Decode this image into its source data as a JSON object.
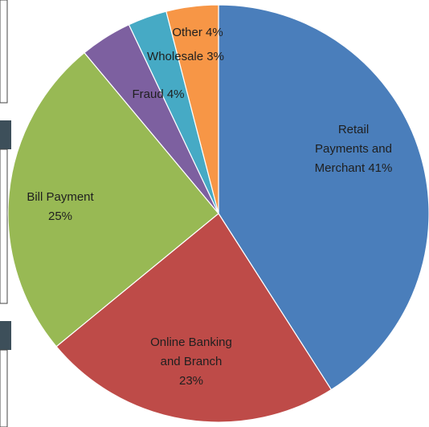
{
  "chart_data": {
    "type": "pie",
    "categories": [
      "Retail Payments and Merchant",
      "Online Banking and Branch",
      "Bill Payment",
      "Fraud",
      "Wholesale",
      "Other"
    ],
    "values": [
      41,
      23,
      25,
      4,
      3,
      4
    ],
    "value_labels": [
      "41%",
      "23%",
      "25%",
      "4%",
      "3%",
      "4%"
    ],
    "colors": [
      "#4a7ebb",
      "#be4b48",
      "#98b954",
      "#7d60a0",
      "#46aac5",
      "#f79646"
    ]
  }
}
